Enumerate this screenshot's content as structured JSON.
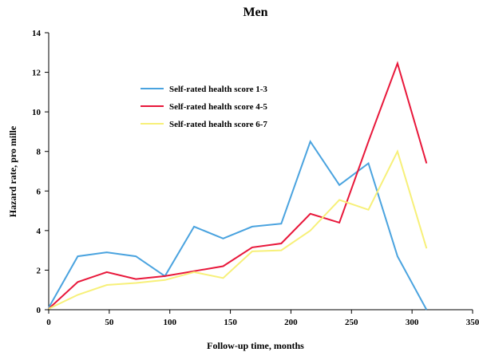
{
  "chart_data": {
    "type": "line",
    "title": "Men",
    "xlabel": "Follow-up time, months",
    "ylabel": "Hazard rate, pro mille",
    "xlim": [
      0,
      350
    ],
    "ylim": [
      0,
      14
    ],
    "xticks": [
      0,
      50,
      100,
      150,
      200,
      250,
      300,
      350
    ],
    "yticks": [
      0,
      2,
      4,
      6,
      8,
      10,
      12,
      14
    ],
    "grid": false,
    "legend_position": "upper-left inside plot",
    "series": [
      {
        "name": "Self-rated health score 1-3",
        "color": "#4aa3df",
        "x": [
          0,
          24,
          48,
          72,
          96,
          120,
          144,
          168,
          192,
          216,
          240,
          264,
          288,
          312
        ],
        "y": [
          0.1,
          2.7,
          2.9,
          2.7,
          1.7,
          4.2,
          3.6,
          4.2,
          4.35,
          8.5,
          6.3,
          7.4,
          2.7,
          0.0
        ]
      },
      {
        "name": "Self-rated health score 4-5",
        "color": "#e8173a",
        "x": [
          0,
          24,
          48,
          72,
          96,
          120,
          144,
          168,
          192,
          216,
          240,
          264,
          288,
          312
        ],
        "y": [
          0.05,
          1.4,
          1.9,
          1.55,
          1.7,
          1.95,
          2.2,
          3.15,
          3.35,
          4.85,
          4.4,
          8.5,
          12.45,
          7.4
        ]
      },
      {
        "name": "Self-rated health score 6-7",
        "color": "#f7f079",
        "x": [
          0,
          24,
          48,
          72,
          96,
          120,
          144,
          168,
          192,
          216,
          240,
          264,
          288,
          312
        ],
        "y": [
          0.05,
          0.75,
          1.25,
          1.35,
          1.5,
          1.9,
          1.6,
          2.95,
          3.0,
          4.0,
          5.55,
          5.05,
          8.0,
          3.1
        ]
      }
    ]
  }
}
